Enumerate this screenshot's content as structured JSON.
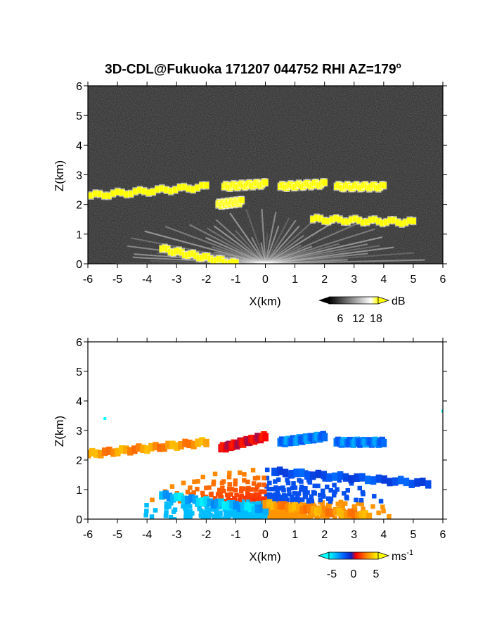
{
  "title": "3D-CDL@Fukuoka 171207 044752 RHI AZ=179",
  "title_sup": "o",
  "chart_data": [
    {
      "type": "heatmap",
      "xlabel": "X(km)",
      "ylabel": "Z(km)",
      "xlim": [
        -6,
        6
      ],
      "ylim": [
        0,
        6
      ],
      "xticks": [
        "-6",
        "-5",
        "-4",
        "-3",
        "-2",
        "-1",
        "0",
        "1",
        "2",
        "3",
        "4",
        "5",
        "6"
      ],
      "yticks": [
        "0",
        "1",
        "2",
        "3",
        "4",
        "5",
        "6"
      ],
      "colorbar": {
        "unit": "dB",
        "ticks": [
          "6",
          "12",
          "18"
        ],
        "palette": [
          "#000000",
          "#ffffff",
          "#ffff00"
        ]
      },
      "features": [
        {
          "x": [
            -5.9,
            -2.0
          ],
          "z": [
            2.3,
            2.6
          ]
        },
        {
          "x": [
            -1.4,
            0.0
          ],
          "z": [
            2.6,
            2.7
          ]
        },
        {
          "x": [
            0.5,
            2.0
          ],
          "z": [
            2.6,
            2.7
          ]
        },
        {
          "x": [
            2.4,
            4.0
          ],
          "z": [
            2.6,
            2.6
          ]
        },
        {
          "x": [
            -1.6,
            -0.8
          ],
          "z": [
            2.0,
            2.1
          ]
        },
        {
          "x": [
            1.6,
            5.0
          ],
          "z": [
            1.5,
            1.4
          ]
        },
        {
          "x": [
            -3.5,
            -1.0
          ],
          "z": [
            0.5,
            0.0
          ]
        }
      ]
    },
    {
      "type": "heatmap",
      "xlabel": "X(km)",
      "ylabel": "Z(km)",
      "xlim": [
        -6,
        6
      ],
      "ylim": [
        0,
        6
      ],
      "xticks": [
        "-6",
        "-5",
        "-4",
        "-3",
        "-2",
        "-1",
        "0",
        "1",
        "2",
        "3",
        "4",
        "5",
        "6"
      ],
      "yticks": [
        "0",
        "1",
        "2",
        "3",
        "4",
        "5",
        "6"
      ],
      "colorbar": {
        "unit": "ms",
        "unit_sup": "-1",
        "ticks": [
          "-5",
          "0",
          "5"
        ],
        "palette": [
          "#00ffff",
          "#0060ff",
          "#1020c0",
          "#ff0000",
          "#ff8000",
          "#ffff00"
        ]
      },
      "features": [
        {
          "x": [
            -6.0,
            -2.0
          ],
          "z": [
            2.2,
            2.6
          ],
          "v": 4
        },
        {
          "x": [
            -1.5,
            0.0
          ],
          "z": [
            2.4,
            2.8
          ],
          "v": 1
        },
        {
          "x": [
            0.5,
            2.0
          ],
          "z": [
            2.6,
            2.8
          ],
          "v": -4
        },
        {
          "x": [
            2.4,
            4.0
          ],
          "z": [
            2.6,
            2.6
          ],
          "v": -4
        },
        {
          "x": [
            0.3,
            5.5
          ],
          "z": [
            1.6,
            1.2
          ],
          "v": -3
        },
        {
          "x": [
            -3.5,
            0.0
          ],
          "z": [
            0.8,
            0.3
          ],
          "v": -5
        },
        {
          "x": [
            0.0,
            3.5
          ],
          "z": [
            0.5,
            0.1
          ],
          "v": 4
        }
      ]
    }
  ]
}
